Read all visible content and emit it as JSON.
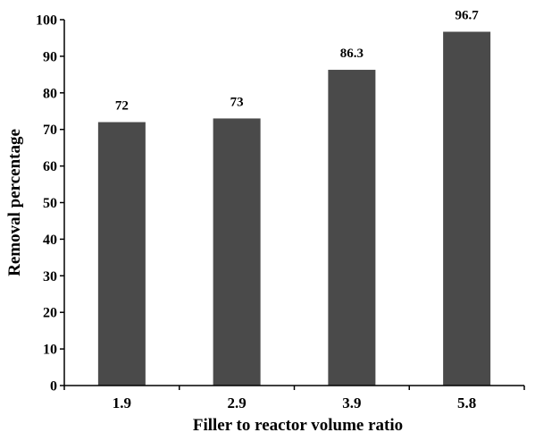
{
  "chart_data": {
    "type": "bar",
    "title": "",
    "xlabel": "Filler to reactor volume ratio",
    "ylabel": "Removal percentage",
    "categories": [
      "1.9",
      "2.9",
      "3.9",
      "5.8"
    ],
    "values": [
      72,
      73,
      86.3,
      96.7
    ],
    "data_labels": [
      "72",
      "73",
      "86.3",
      "96.7"
    ],
    "yticks": [
      "0",
      "10",
      "20",
      "30",
      "40",
      "50",
      "60",
      "70",
      "80",
      "90",
      "100"
    ],
    "ylim": [
      0,
      100
    ],
    "grid": false,
    "legend": "none",
    "bar_color": "#4a4a4a",
    "axis_color": "#000000"
  }
}
